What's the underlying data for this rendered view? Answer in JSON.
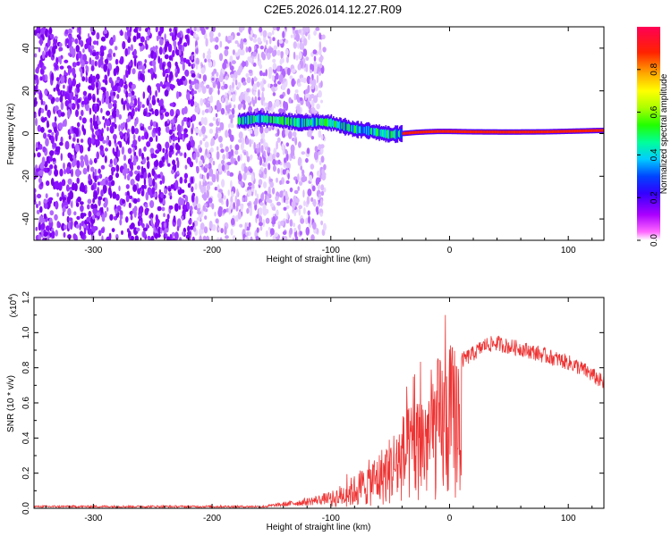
{
  "figure": {
    "title": "C2E5.2026.014.12.27.R09"
  },
  "chart_data": [
    {
      "type": "heatmap",
      "xlabel": "Height of straight line (km)",
      "ylabel": "Frequency (Hz)",
      "xlim": [
        -350,
        130
      ],
      "ylim": [
        -50,
        50
      ],
      "xticks": [
        -300,
        -200,
        -100,
        0,
        100
      ],
      "yticks": [
        -40,
        -20,
        0,
        20,
        40
      ],
      "colorbar": {
        "label": "Normalized spectral amplitude",
        "range": [
          0.0,
          1.0
        ],
        "ticks": [
          "0.0",
          "0.2",
          "0.4",
          "0.6",
          "0.8"
        ],
        "colors": [
          "#ffffff",
          "#ff00ff",
          "#8800ff",
          "#0000ff",
          "#00ccff",
          "#00ff88",
          "#44ff00",
          "#ffff00",
          "#ff9900",
          "#ff0000",
          "#ff0055"
        ]
      },
      "noise_region_x": [
        -350,
        -105
      ],
      "signal_trace": {
        "x": [
          -175,
          -160,
          -150,
          -140,
          -125,
          -110,
          -100,
          -90,
          -80,
          -70,
          -60,
          -50,
          -40,
          -30,
          -20,
          -10,
          0,
          20,
          50,
          80,
          110,
          130
        ],
        "y": [
          6,
          7,
          6.5,
          6,
          5,
          5.5,
          5,
          3.5,
          2,
          1.5,
          0.5,
          -0.5,
          0,
          0.5,
          0.8,
          1,
          1,
          0.8,
          0.7,
          0.8,
          1.2,
          1.5
        ]
      }
    },
    {
      "type": "line",
      "xlabel": "Height of straight line (km)",
      "ylabel": "SNR (10 * v/v)",
      "scale_note": "(x10",
      "scale_exp": "4",
      "scale_close": ")",
      "xlim": [
        -350,
        130
      ],
      "ylim": [
        0.0,
        1.2
      ],
      "xticks": [
        -300,
        -200,
        -100,
        0,
        100
      ],
      "yticks": [
        "0.0",
        "0.2",
        "0.4",
        "0.6",
        "0.8",
        "1.0",
        "1.2"
      ],
      "color": "#ee3333",
      "envelope": {
        "x": [
          -350,
          -160,
          -140,
          -120,
          -100,
          -90,
          -80,
          -70,
          -60,
          -50,
          -40,
          -30,
          -20,
          -10,
          0,
          10,
          20,
          30,
          40,
          50,
          60,
          70,
          80,
          90,
          100,
          110,
          120,
          130
        ],
        "y": [
          0.01,
          0.01,
          0.03,
          0.05,
          0.08,
          0.12,
          0.16,
          0.22,
          0.27,
          0.35,
          0.45,
          0.52,
          0.62,
          0.72,
          0.78,
          0.84,
          0.88,
          0.93,
          0.94,
          0.92,
          0.91,
          0.89,
          0.87,
          0.85,
          0.83,
          0.8,
          0.76,
          0.71
        ]
      }
    }
  ]
}
